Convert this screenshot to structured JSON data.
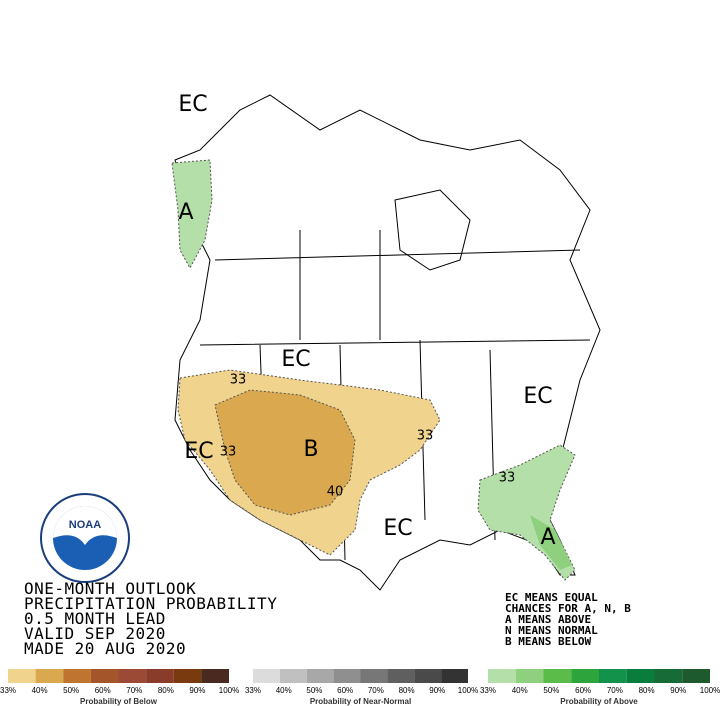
{
  "logo_text": "NOAA",
  "map_labels": [
    "EC",
    "A",
    "EC",
    "33",
    "EC",
    "33",
    "B",
    "33",
    "40",
    "EC",
    "EC",
    "33",
    "A"
  ],
  "title_lines": [
    "ONE-MONTH OUTLOOK",
    "PRECIPITATION PROBABILITY",
    "0.5 MONTH LEAD",
    "VALID SEP 2020",
    "MADE 20 AUG 2020"
  ],
  "notes": [
    "EC MEANS EQUAL",
    "CHANCES FOR A, N, B",
    "A MEANS ABOVE",
    "N MEANS NORMAL",
    "B MEANS BELOW"
  ],
  "legends": [
    {
      "title": "Probability of Below",
      "ticks": [
        "33%",
        "40%",
        "50%",
        "60%",
        "70%",
        "80%",
        "90%",
        "100%"
      ],
      "colors": [
        "#f0d38c",
        "#d9a84f",
        "#bf7430",
        "#a5552a",
        "#9b4a35",
        "#8a3c2a",
        "#7a3a10",
        "#4a2a20"
      ]
    },
    {
      "title": "Probability of Near-Normal",
      "ticks": [
        "33%",
        "40%",
        "50%",
        "60%",
        "70%",
        "80%",
        "90%",
        "100%"
      ],
      "colors": [
        "#dcdcdc",
        "#c0c0c0",
        "#a8a8a8",
        "#8f8f8f",
        "#777777",
        "#5f5f5f",
        "#4a4a4a",
        "#333333"
      ]
    },
    {
      "title": "Probability of Above",
      "ticks": [
        "33%",
        "40%",
        "50%",
        "60%",
        "70%",
        "80%",
        "90%",
        "100%"
      ],
      "colors": [
        "#b4dfa8",
        "#8fd07e",
        "#5cbc4a",
        "#2ea43c",
        "#12924a",
        "#0a7d3c",
        "#176b36",
        "#1d5a2e"
      ]
    }
  ]
}
